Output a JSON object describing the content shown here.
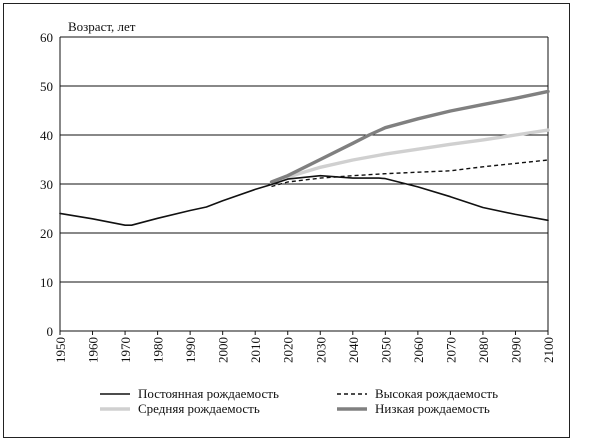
{
  "chart_data": {
    "type": "line",
    "title": "",
    "xlabel": "",
    "ylabel": "Возраст, лет",
    "ylim": [
      0,
      60
    ],
    "xlim": [
      1950,
      2100
    ],
    "yticks": [
      0,
      10,
      20,
      30,
      40,
      50,
      60
    ],
    "xticks": [
      1950,
      1960,
      1970,
      1980,
      1990,
      2000,
      2010,
      2020,
      2030,
      2040,
      2050,
      2060,
      2070,
      2080,
      2090,
      2100
    ],
    "grid": "horizontal",
    "legend_position": "bottom",
    "series": [
      {
        "name": "Постоянная рождаемость",
        "style": "solid",
        "color": "#111111",
        "points": [
          [
            1950,
            24
          ],
          [
            1960,
            22.9
          ],
          [
            1970,
            21.6
          ],
          [
            1972,
            21.6
          ],
          [
            1980,
            23
          ],
          [
            1990,
            24.6
          ],
          [
            1995,
            25.3
          ],
          [
            2000,
            26.6
          ],
          [
            2010,
            28.9
          ],
          [
            2015,
            29.9
          ],
          [
            2020,
            31
          ],
          [
            2030,
            31.7
          ],
          [
            2040,
            31.2
          ],
          [
            2048,
            31.2
          ],
          [
            2050,
            31.1
          ],
          [
            2060,
            29.4
          ],
          [
            2070,
            27.4
          ],
          [
            2080,
            25.2
          ],
          [
            2090,
            23.8
          ],
          [
            2100,
            22.6
          ]
        ]
      },
      {
        "name": "Высокая рождаемость",
        "style": "dashed",
        "color": "#111111",
        "points": [
          [
            2015,
            29.5
          ],
          [
            2020,
            30.4
          ],
          [
            2030,
            31.2
          ],
          [
            2040,
            31.7
          ],
          [
            2050,
            32.1
          ],
          [
            2060,
            32.4
          ],
          [
            2070,
            32.7
          ],
          [
            2080,
            33.5
          ],
          [
            2090,
            34.2
          ],
          [
            2100,
            34.9
          ]
        ]
      },
      {
        "name": "Средняя рождаемость",
        "style": "solid",
        "color": "#d0d0d0",
        "points": [
          [
            2015,
            30.2
          ],
          [
            2020,
            31.4
          ],
          [
            2030,
            33.4
          ],
          [
            2040,
            34.9
          ],
          [
            2050,
            36.1
          ],
          [
            2060,
            37.1
          ],
          [
            2070,
            38.1
          ],
          [
            2080,
            39
          ],
          [
            2090,
            40
          ],
          [
            2100,
            41
          ]
        ]
      },
      {
        "name": "Низкая рождаемость",
        "style": "solid",
        "color": "#808080",
        "points": [
          [
            2015,
            30.4
          ],
          [
            2020,
            31.7
          ],
          [
            2030,
            35
          ],
          [
            2040,
            38.3
          ],
          [
            2045,
            40
          ],
          [
            2050,
            41.5
          ],
          [
            2060,
            43.3
          ],
          [
            2070,
            44.9
          ],
          [
            2080,
            46.2
          ],
          [
            2090,
            47.5
          ],
          [
            2100,
            48.9
          ]
        ]
      }
    ]
  }
}
